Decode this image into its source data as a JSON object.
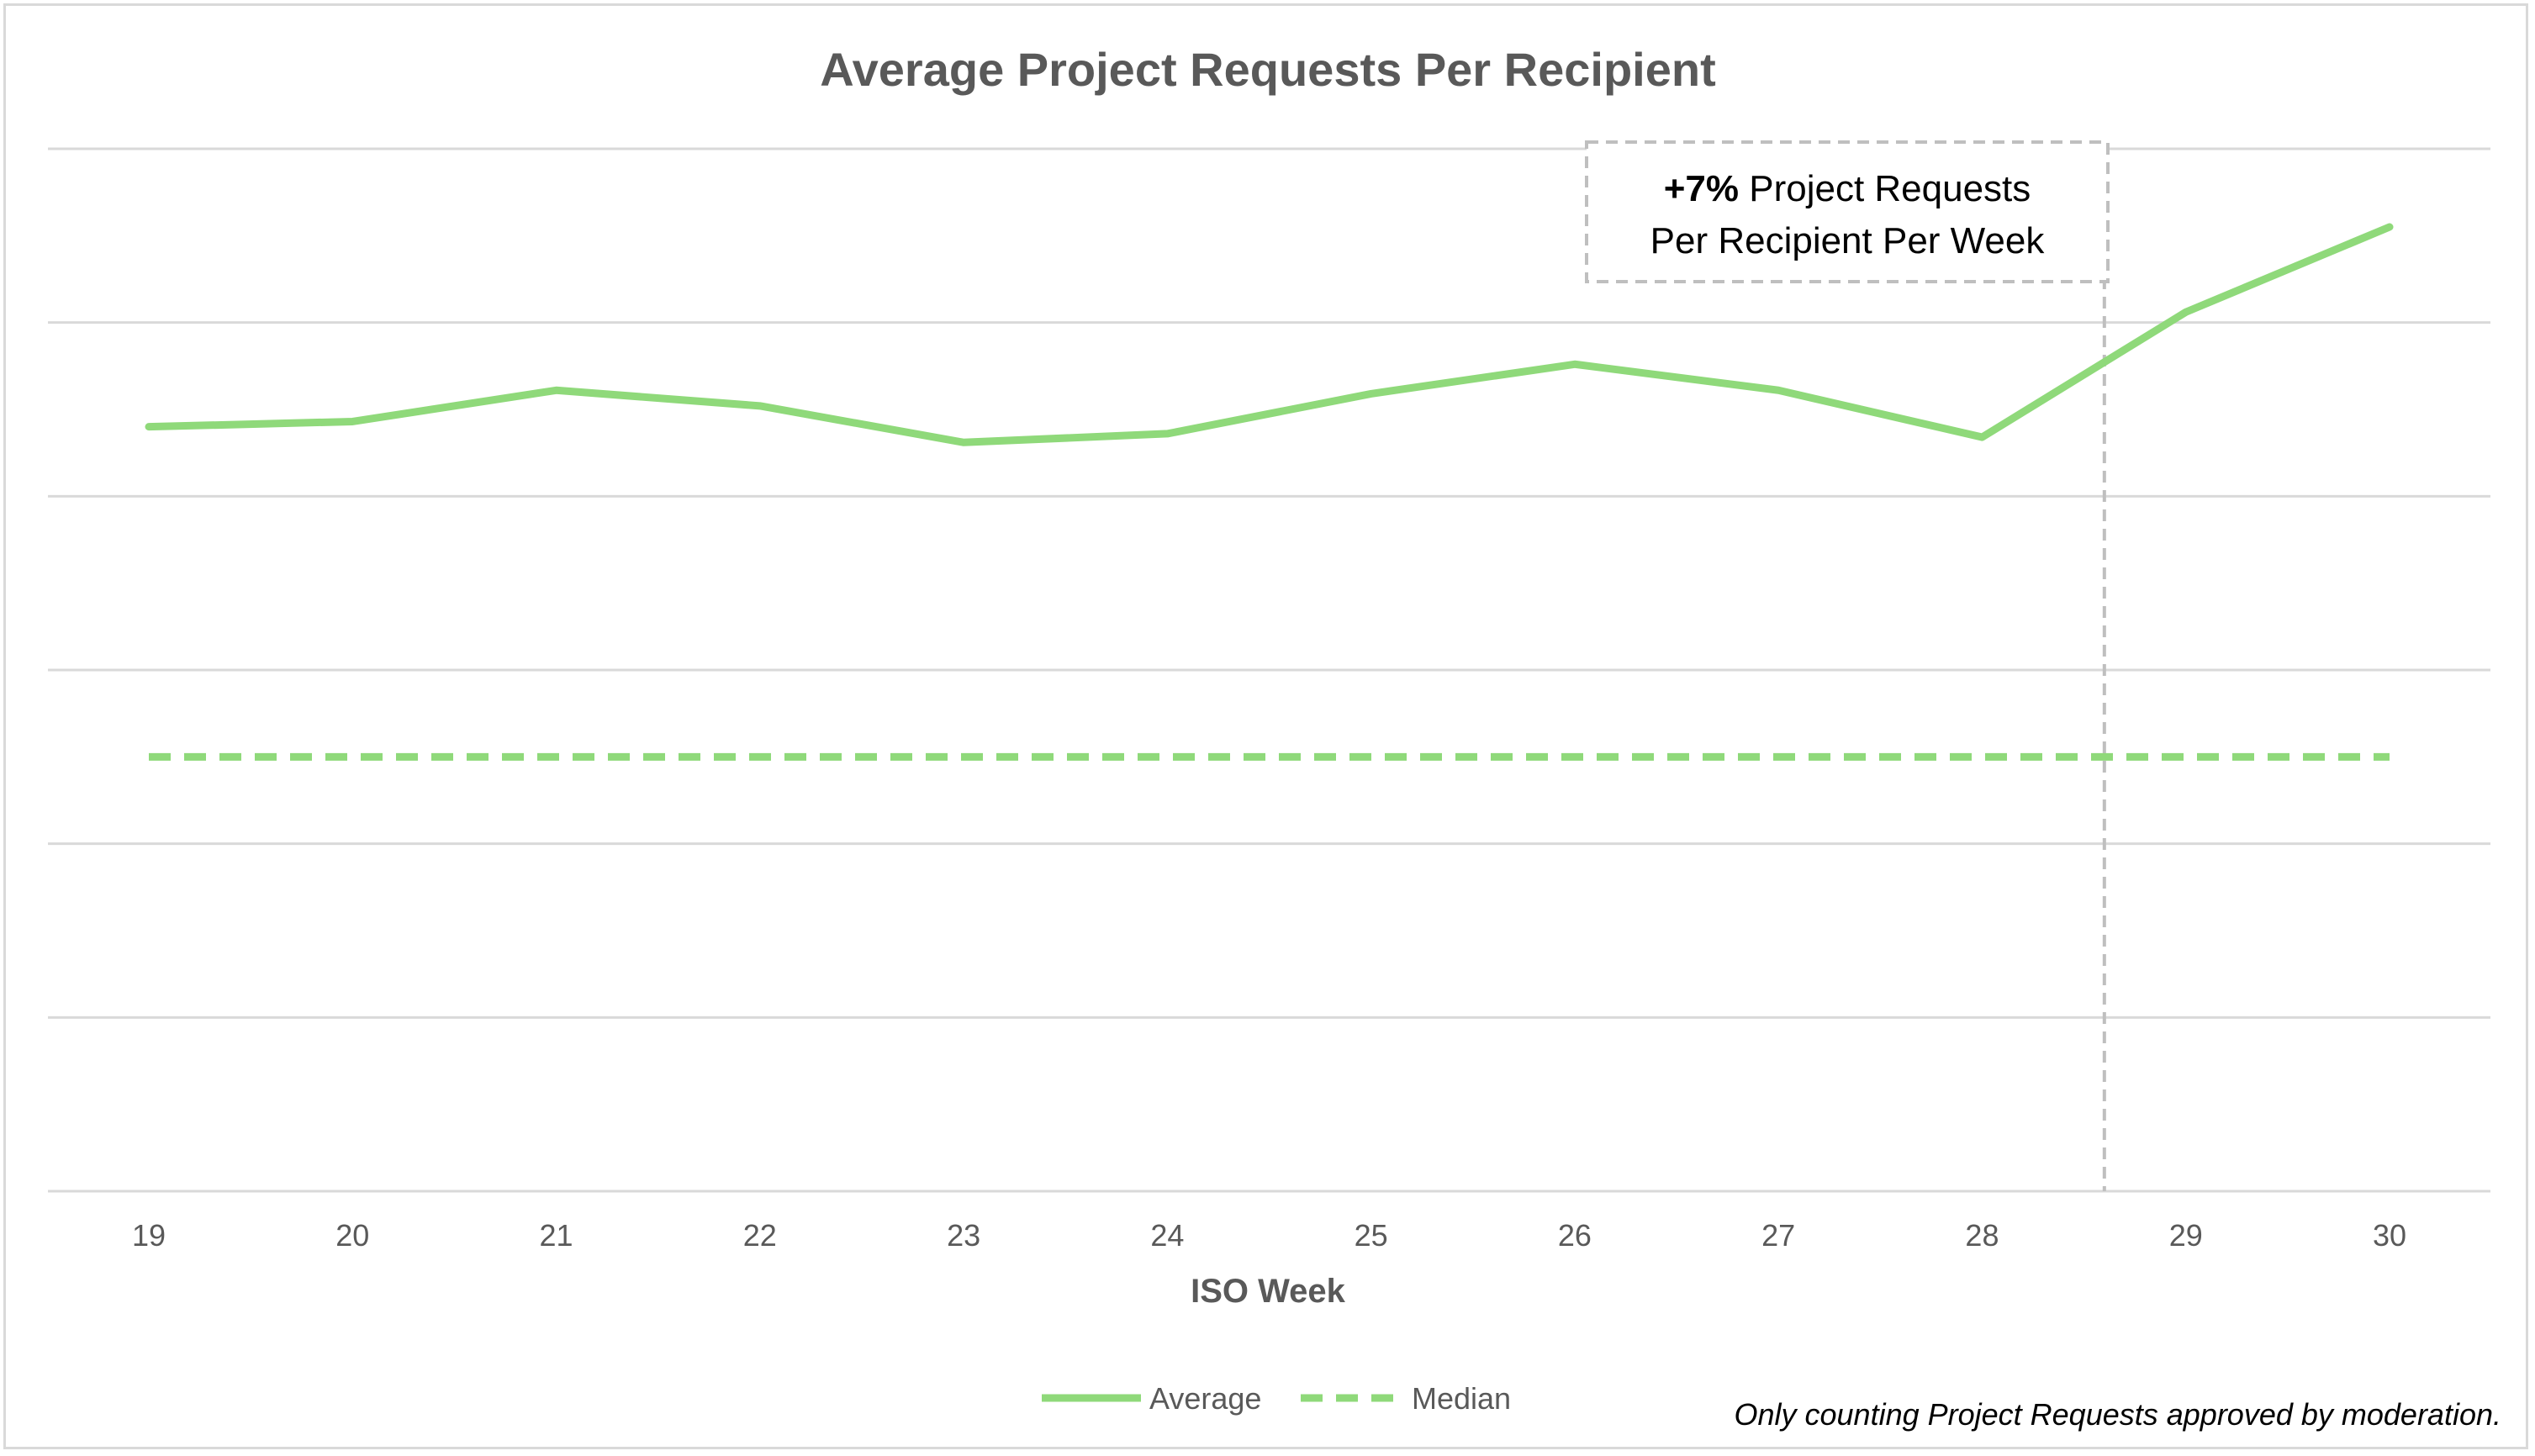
{
  "chart_data": {
    "type": "line",
    "title": "Average Project Requests Per Recipient",
    "xlabel": "ISO Week",
    "ylabel": "",
    "categories": [
      "19",
      "20",
      "21",
      "22",
      "23",
      "24",
      "25",
      "26",
      "27",
      "28",
      "29",
      "30"
    ],
    "ylim": [
      0,
      6
    ],
    "y_gridlines": [
      0,
      1,
      2,
      3,
      4,
      5,
      6
    ],
    "y_tick_labels_visible": false,
    "grid": true,
    "series": [
      {
        "name": "Average",
        "style": "solid",
        "color": "#8fd97a",
        "values": [
          4.4,
          4.43,
          4.61,
          4.52,
          4.31,
          4.36,
          4.59,
          4.76,
          4.61,
          4.34,
          5.06,
          5.55
        ]
      },
      {
        "name": "Median",
        "style": "dashed",
        "color": "#8fd97a",
        "values": [
          2.5,
          2.5,
          2.5,
          2.5,
          2.5,
          2.5,
          2.5,
          2.5,
          2.5,
          2.5,
          2.5,
          2.5
        ]
      }
    ],
    "marker_line": {
      "between_categories": [
        "28",
        "29"
      ],
      "style": "dashed",
      "color": "#bfbfbf"
    },
    "annotation": {
      "bold_part": "+7%",
      "line1_rest": " Project Requests",
      "line2": "Per Recipient Per Week"
    },
    "legend": {
      "position": "bottom-center",
      "entries": [
        "Average",
        "Median"
      ]
    },
    "footnote": "Only counting Project Requests approved by moderation."
  },
  "colors": {
    "series": "#8fd97a",
    "gridline": "#d9d9d9",
    "marker_line": "#bfbfbf",
    "text": "#595959"
  }
}
